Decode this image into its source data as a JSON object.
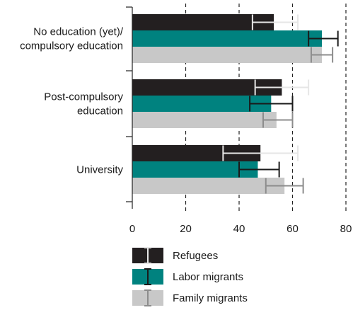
{
  "chart_data": {
    "type": "bar",
    "orientation": "horizontal",
    "categories": [
      [
        "No education (yet)/",
        "compulsory education"
      ],
      [
        "Post-compulsory",
        "education"
      ],
      [
        "University"
      ]
    ],
    "series": [
      {
        "name": "Refugees",
        "values": [
          53,
          56,
          48
        ],
        "ci_low": [
          45,
          46,
          34
        ],
        "ci_high": [
          62,
          66,
          62
        ],
        "color": "#231f20",
        "error_color": "#e6e6e6"
      },
      {
        "name": "Labor migrants",
        "values": [
          71,
          52,
          47
        ],
        "ci_low": [
          66,
          44,
          40
        ],
        "ci_high": [
          77,
          60,
          55
        ],
        "color": "#00827f",
        "error_color": "#1a1a1a"
      },
      {
        "name": "Family migrants",
        "values": [
          71,
          54,
          57
        ],
        "ci_low": [
          67,
          49,
          50
        ],
        "ci_high": [
          75,
          60,
          64
        ],
        "color": "#c8c8c8",
        "error_color": "#8c8c8c"
      }
    ],
    "xlim": [
      0,
      80
    ],
    "xticks": [
      "0",
      "20",
      "40",
      "60",
      "80"
    ],
    "grid": "vertical dashed",
    "legend_position": "bottom"
  }
}
